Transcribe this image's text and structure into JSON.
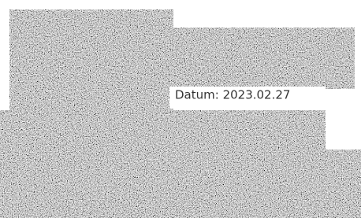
{
  "label": {
    "text": "Datum: 2023.02.27"
  }
}
